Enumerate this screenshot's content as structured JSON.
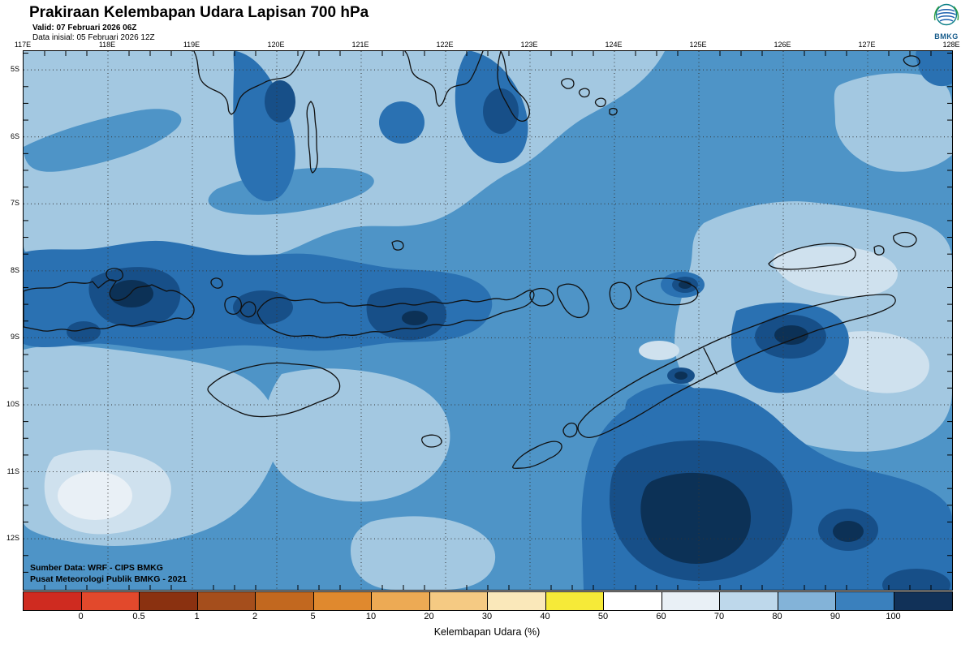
{
  "header": {
    "title": "Prakiraan Kelembapan Udara Lapisan 700 hPa",
    "valid": "Valid: 07 Februari 2026 06Z",
    "init": "Data inisial: 05 Februari 2026 12Z",
    "agency": "BMKG"
  },
  "map": {
    "lon_labels": [
      "117E",
      "118E",
      "119E",
      "120E",
      "121E",
      "122E",
      "123E",
      "124E",
      "125E",
      "126E",
      "127E",
      "128E"
    ],
    "lat_labels": [
      "5S",
      "6S",
      "7S",
      "8S",
      "9S",
      "10S",
      "11S",
      "12S"
    ],
    "source_line1": "Sumber Data: WRF - CIPS BMKG",
    "source_line2": "Pusat Meteorologi Publik BMKG - 2021",
    "humidity_shades": [
      "#e9f0f6",
      "#cfe1ee",
      "#a3c8e1",
      "#4e94c7",
      "#2a71b2",
      "#174f88",
      "#0c3156"
    ]
  },
  "legend": {
    "caption": "Kelembapan Udara (%)",
    "values": [
      "0",
      "0.5",
      "1",
      "2",
      "5",
      "10",
      "20",
      "30",
      "40",
      "50",
      "60",
      "70",
      "80",
      "90",
      "100"
    ],
    "colors": [
      "#cf2b20",
      "#e2492c",
      "#8a3110",
      "#a54e1c",
      "#c2681f",
      "#e0892e",
      "#edaa54",
      "#f5ca83",
      "#fae8ba",
      "#f6ea38",
      "#ffffff",
      "#e9f0f6",
      "#bed8eb",
      "#83b3d8",
      "#3a80bd",
      "#113158"
    ]
  }
}
